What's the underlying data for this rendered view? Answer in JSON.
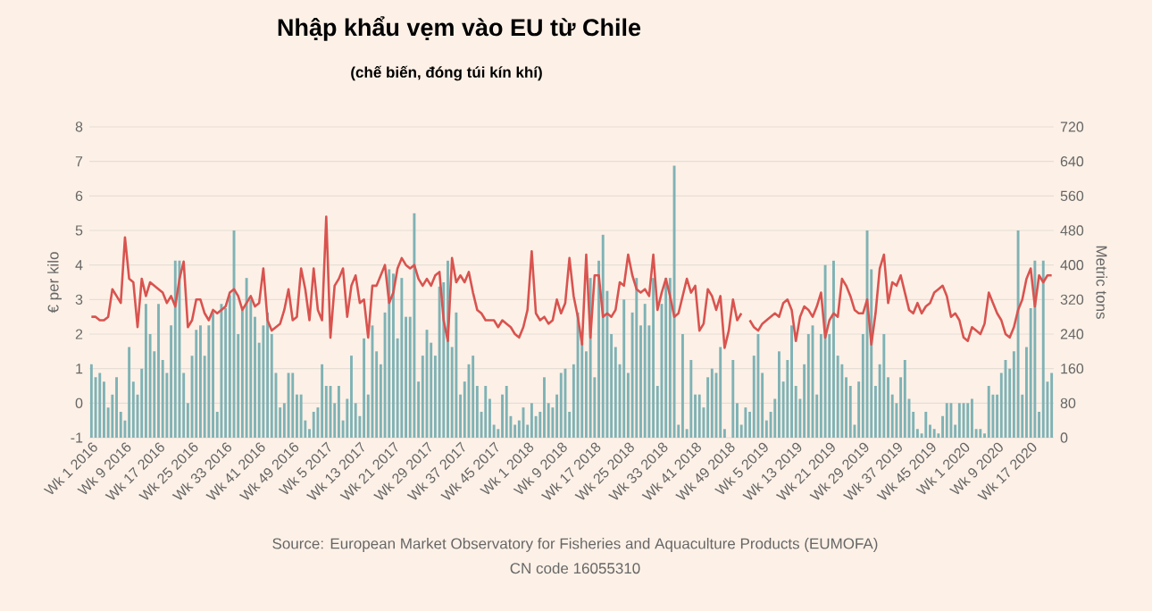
{
  "chart_data": {
    "type": "bar",
    "title": "Nhập khẩu vẹm vào EU từ Chile",
    "subtitle": "(chế biến, đóng túi kín khí)",
    "ylabel": "€ per kilo",
    "y2label": "Metric tons",
    "annotations": [
      "Source: European Market Observatory for Fisheries and Aquaculture Products (EUMOFA)",
      "CN code 16055310"
    ],
    "grid": "y",
    "ylim": [
      -1,
      8
    ],
    "yticks": [
      -1,
      0,
      1,
      2,
      3,
      4,
      5,
      6,
      7,
      8
    ],
    "y2lim": [
      0,
      720
    ],
    "y2ticks": [
      0,
      80,
      160,
      240,
      320,
      400,
      480,
      560,
      640,
      720
    ],
    "categories": [
      "Wk 1 2016",
      null,
      null,
      null,
      null,
      null,
      null,
      null,
      "Wk 9 2016",
      null,
      null,
      null,
      null,
      null,
      null,
      null,
      "Wk 17 2016",
      null,
      null,
      null,
      null,
      null,
      null,
      null,
      "Wk 25 2016",
      null,
      null,
      null,
      null,
      null,
      null,
      null,
      "Wk 33 2016",
      null,
      null,
      null,
      null,
      null,
      null,
      null,
      "Wk 41 2016",
      null,
      null,
      null,
      null,
      null,
      null,
      null,
      "Wk 49 2016",
      null,
      null,
      null,
      null,
      null,
      null,
      null,
      "Wk 5 2017",
      null,
      null,
      null,
      null,
      null,
      null,
      null,
      "Wk 13 2017",
      null,
      null,
      null,
      null,
      null,
      null,
      null,
      "Wk 21 2017",
      null,
      null,
      null,
      null,
      null,
      null,
      null,
      "Wk 29 2017",
      null,
      null,
      null,
      null,
      null,
      null,
      null,
      "Wk 37 2017",
      null,
      null,
      null,
      null,
      null,
      null,
      null,
      "Wk 45 2017",
      null,
      null,
      null,
      null,
      null,
      null,
      null,
      "Wk 1 2018",
      null,
      null,
      null,
      null,
      null,
      null,
      null,
      "Wk 9 2018",
      null,
      null,
      null,
      null,
      null,
      null,
      null,
      "Wk 17 2018",
      null,
      null,
      null,
      null,
      null,
      null,
      null,
      "Wk 25 2018",
      null,
      null,
      null,
      null,
      null,
      null,
      null,
      "Wk 33 2018",
      null,
      null,
      null,
      null,
      null,
      null,
      null,
      "Wk 41 2018",
      null,
      null,
      null,
      null,
      null,
      null,
      null,
      "Wk 49 2018",
      null,
      null,
      null,
      null,
      null,
      null,
      null,
      "Wk 5 2019",
      null,
      null,
      null,
      null,
      null,
      null,
      null,
      "Wk 13 2019",
      null,
      null,
      null,
      null,
      null,
      null,
      null,
      "Wk 21 2019",
      null,
      null,
      null,
      null,
      null,
      null,
      null,
      "Wk 29 2019",
      null,
      null,
      null,
      null,
      null,
      null,
      null,
      "Wk 37 2019",
      null,
      null,
      null,
      null,
      null,
      null,
      null,
      "Wk 45 2019",
      null,
      null,
      null,
      null,
      null,
      null,
      null,
      "Wk 1 2020",
      null,
      null,
      null,
      null,
      null,
      null,
      null,
      "Wk 9 2020",
      null,
      null,
      null,
      null,
      null,
      null,
      null,
      "Wk 17 2020",
      null,
      null,
      null,
      null,
      null
    ],
    "series": [
      {
        "axis": "y2",
        "color": "#7fb2b5",
        "values": [
          170,
          140,
          150,
          130,
          70,
          100,
          140,
          60,
          40,
          210,
          130,
          100,
          160,
          310,
          240,
          200,
          310,
          180,
          150,
          260,
          410,
          410,
          150,
          80,
          190,
          250,
          260,
          190,
          260,
          290,
          60,
          310,
          300,
          330,
          480,
          240,
          300,
          370,
          320,
          280,
          220,
          260,
          290,
          240,
          150,
          70,
          80,
          150,
          150,
          100,
          100,
          40,
          20,
          60,
          70,
          170,
          120,
          120,
          80,
          120,
          40,
          90,
          190,
          80,
          50,
          230,
          100,
          260,
          200,
          170,
          290,
          390,
          380,
          230,
          370,
          280,
          280,
          520,
          130,
          190,
          250,
          220,
          190,
          350,
          360,
          410,
          210,
          290,
          100,
          130,
          170,
          190,
          120,
          60,
          120,
          90,
          30,
          20,
          100,
          120,
          50,
          30,
          40,
          70,
          30,
          80,
          50,
          60,
          140,
          80,
          70,
          100,
          150,
          160,
          60,
          170,
          290,
          220,
          200,
          370,
          140,
          410,
          470,
          340,
          240,
          210,
          170,
          320,
          150,
          290,
          370,
          260,
          310,
          260,
          370,
          120,
          310,
          370,
          370,
          630,
          30,
          240,
          20,
          180,
          100,
          100,
          70,
          140,
          160,
          150,
          210,
          20,
          null,
          180,
          80,
          30,
          70,
          60,
          190,
          240,
          150,
          40,
          60,
          90,
          200,
          130,
          180,
          260,
          120,
          90,
          170,
          240,
          260,
          100,
          240,
          400,
          240,
          410,
          190,
          170,
          140,
          120,
          30,
          130,
          240,
          480,
          390,
          120,
          170,
          240,
          140,
          100,
          80,
          140,
          180,
          90,
          60,
          20,
          10,
          60,
          30,
          20,
          10,
          50,
          80,
          80,
          30,
          80,
          80,
          80,
          90,
          20,
          20,
          10,
          120,
          100,
          100,
          150,
          180,
          160,
          200,
          480,
          100,
          210,
          300,
          410,
          60,
          410,
          130,
          150
        ]
      },
      {
        "type": "line",
        "axis": "y",
        "color": "#d9534f",
        "values": [
          2.5,
          2.5,
          2.4,
          2.4,
          2.5,
          3.3,
          3.1,
          2.9,
          4.8,
          3.6,
          3.5,
          2.2,
          3.6,
          3.1,
          3.5,
          3.4,
          3.3,
          3.2,
          2.9,
          3.1,
          2.8,
          3.6,
          4.1,
          2.2,
          2.4,
          3.0,
          3.0,
          2.6,
          2.4,
          2.7,
          2.6,
          2.7,
          2.8,
          3.2,
          3.3,
          3.1,
          2.7,
          2.9,
          3.1,
          2.8,
          2.9,
          3.9,
          2.4,
          2.1,
          2.2,
          2.3,
          2.7,
          3.3,
          2.4,
          2.5,
          3.9,
          3.3,
          2.4,
          3.9,
          2.7,
          2.4,
          5.4,
          1.9,
          3.4,
          3.6,
          3.9,
          2.5,
          3.4,
          3.7,
          2.9,
          3.0,
          1.9,
          3.4,
          3.4,
          3.7,
          4.0,
          2.9,
          3.2,
          3.9,
          4.2,
          4.0,
          3.9,
          4.0,
          3.6,
          3.4,
          3.6,
          3.4,
          3.7,
          3.8,
          2.4,
          1.8,
          4.2,
          3.5,
          3.7,
          3.5,
          3.8,
          3.2,
          2.7,
          2.6,
          2.4,
          2.4,
          2.4,
          2.2,
          2.4,
          2.3,
          2.2,
          2.0,
          1.9,
          2.2,
          2.7,
          4.4,
          2.6,
          2.4,
          2.5,
          2.3,
          2.4,
          3.0,
          2.6,
          2.9,
          4.2,
          3.1,
          2.5,
          1.7,
          4.3,
          1.9,
          3.7,
          3.7,
          2.5,
          2.6,
          2.5,
          2.7,
          3.5,
          3.4,
          4.3,
          3.7,
          3.3,
          3.2,
          3.3,
          3.1,
          4.3,
          2.7,
          3.2,
          3.6,
          3.1,
          2.5,
          2.6,
          3.1,
          3.6,
          3.2,
          3.4,
          2.1,
          2.3,
          3.3,
          3.1,
          2.7,
          3.1,
          1.6,
          2.1,
          3.0,
          2.4,
          2.6,
          null,
          2.4,
          2.2,
          2.1,
          2.3,
          2.4,
          2.5,
          2.6,
          2.5,
          2.9,
          3.0,
          2.7,
          1.8,
          2.5,
          2.8,
          2.7,
          2.5,
          2.8,
          3.2,
          1.9,
          2.4,
          2.6,
          2.5,
          3.6,
          3.4,
          3.1,
          2.7,
          2.6,
          2.6,
          3.0,
          1.7,
          2.6,
          3.9,
          4.3,
          2.9,
          3.5,
          3.4,
          3.7,
          3.2,
          2.7,
          2.6,
          2.9,
          2.6,
          2.8,
          2.9,
          3.2,
          3.3,
          3.4,
          3.1,
          2.5,
          2.6,
          2.4,
          1.9,
          1.8,
          2.2,
          2.1,
          2.0,
          2.3,
          3.2,
          2.9,
          2.6,
          2.4,
          2.0,
          1.9,
          2.2,
          2.7,
          3.0,
          3.6,
          3.9,
          2.8,
          3.7,
          3.5,
          3.7,
          3.7
        ]
      }
    ]
  }
}
